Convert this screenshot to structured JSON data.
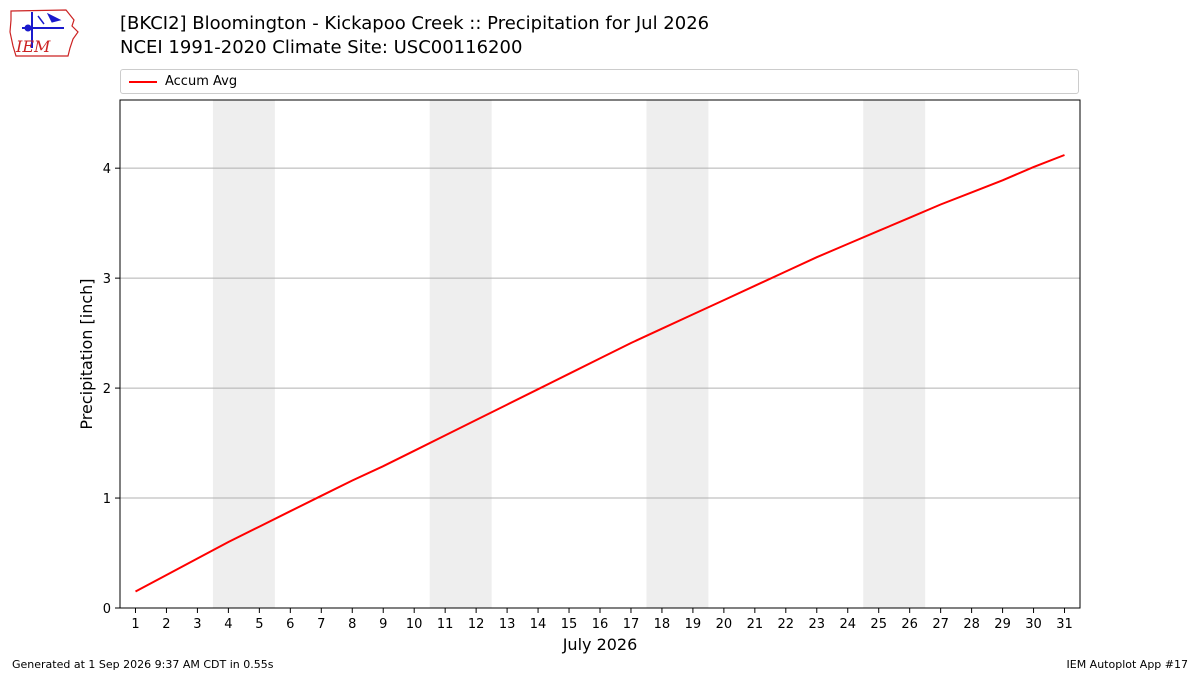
{
  "header": {
    "logo_text": "IEM",
    "title_line1": "[BKCI2] Bloomington - Kickapoo Creek :: Precipitation for Jul 2026",
    "title_line2": "NCEI 1991-2020 Climate Site: USC00116200"
  },
  "footer": {
    "left": "Generated at 1 Sep 2026 9:37 AM CDT in 0.55s",
    "right": "IEM Autoplot App #17"
  },
  "colors": {
    "line": "#ff0000",
    "weekend_shade": "#eeeeee",
    "grid": "#b0b0b0",
    "logo": "#cc2222"
  },
  "chart_data": {
    "type": "line",
    "xlabel": "July 2026",
    "ylabel": "Precipitation [inch]",
    "x": [
      1,
      2,
      3,
      4,
      5,
      6,
      7,
      8,
      9,
      10,
      11,
      12,
      13,
      14,
      15,
      16,
      17,
      18,
      19,
      20,
      21,
      22,
      23,
      24,
      25,
      26,
      27,
      28,
      29,
      30,
      31
    ],
    "xlim": [
      0.5,
      31.5
    ],
    "ylim": [
      0,
      4.62
    ],
    "yticks": [
      0,
      1,
      2,
      3,
      4
    ],
    "grid": "horizontal",
    "legend_position": "top (above plot)",
    "shaded_x_ranges": [
      [
        3.5,
        5.5
      ],
      [
        10.5,
        12.5
      ],
      [
        17.5,
        19.5
      ],
      [
        24.5,
        26.5
      ]
    ],
    "series": [
      {
        "name": "Accum Avg",
        "color": "#ff0000",
        "values": [
          0.15,
          0.3,
          0.45,
          0.6,
          0.74,
          0.88,
          1.02,
          1.16,
          1.29,
          1.43,
          1.57,
          1.71,
          1.85,
          1.99,
          2.13,
          2.27,
          2.41,
          2.54,
          2.67,
          2.8,
          2.93,
          3.06,
          3.19,
          3.31,
          3.43,
          3.55,
          3.67,
          3.78,
          3.89,
          4.01,
          4.12
        ]
      }
    ]
  }
}
